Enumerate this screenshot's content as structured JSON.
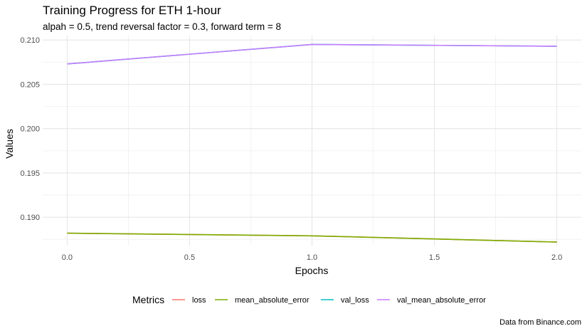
{
  "chart_data": {
    "type": "line",
    "title": "Training Progress for ETH 1-hour",
    "subtitle": "alpah = 0.5, trend reversal factor = 0.3, forward term = 8",
    "xlabel": "Epochs",
    "ylabel": "Values",
    "caption": "Data from Binance.com",
    "xlim": [
      -0.1,
      2.1
    ],
    "ylim": [
      0.1868,
      0.2105
    ],
    "x_ticks": [
      0.0,
      0.5,
      1.0,
      1.5,
      2.0
    ],
    "x_tick_labels": [
      "0.0",
      "0.5",
      "1.0",
      "1.5",
      "2.0"
    ],
    "y_ticks": [
      0.19,
      0.195,
      0.2,
      0.205,
      0.21
    ],
    "y_tick_labels": [
      "0.190",
      "0.195",
      "0.200",
      "0.205",
      "0.210"
    ],
    "grid": true,
    "legend": {
      "title": "Metrics",
      "position": "bottom"
    },
    "series": [
      {
        "name": "loss",
        "color": "#F8766D",
        "x": [
          0,
          1,
          2
        ],
        "y": [
          0.1882,
          0.1879,
          0.1872
        ]
      },
      {
        "name": "mean_absolute_error",
        "color": "#7CAE00",
        "x": [
          0,
          1,
          2
        ],
        "y": [
          0.1882,
          0.1879,
          0.1872
        ]
      },
      {
        "name": "val_loss",
        "color": "#00BFC4",
        "x": [
          0,
          1,
          2
        ],
        "y": [
          0.2073,
          0.2095,
          0.2093
        ]
      },
      {
        "name": "val_mean_absolute_error",
        "color": "#C77CFF",
        "x": [
          0,
          1,
          2
        ],
        "y": [
          0.2073,
          0.2095,
          0.2093
        ]
      }
    ]
  }
}
